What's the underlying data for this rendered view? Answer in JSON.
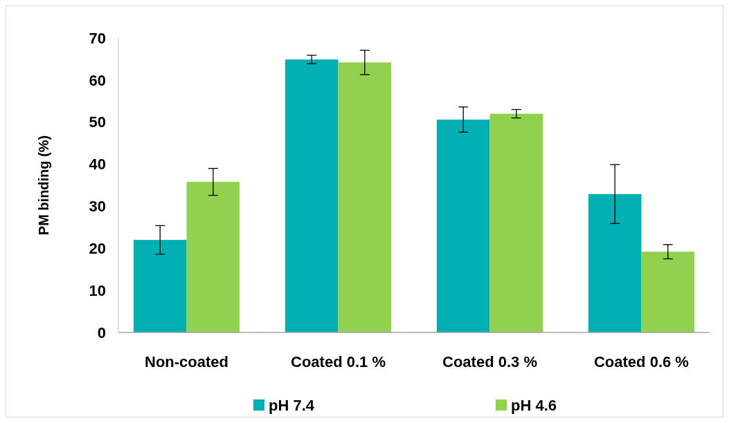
{
  "chart_data": {
    "type": "bar",
    "ylabel": "PM binding (%)",
    "categories": [
      "Non-coated",
      "Coated 0.1 %",
      "Coated 0.3 %",
      "Coated 0.6 %"
    ],
    "series": [
      {
        "name": "pH 7.4",
        "color": "#00afb2",
        "values": [
          22,
          64.9,
          50.6,
          32.9
        ],
        "errors": [
          3.4,
          1,
          3,
          7
        ]
      },
      {
        "name": "pH 4.6",
        "color": "#92d050",
        "values": [
          35.8,
          64.2,
          52,
          19.2
        ],
        "errors": [
          3.2,
          2.9,
          1,
          1.7
        ]
      }
    ],
    "ylim": [
      0,
      70
    ],
    "yticks": [
      0,
      10,
      20,
      30,
      40,
      50,
      60,
      70
    ],
    "grid": false,
    "legend": "bottom"
  }
}
